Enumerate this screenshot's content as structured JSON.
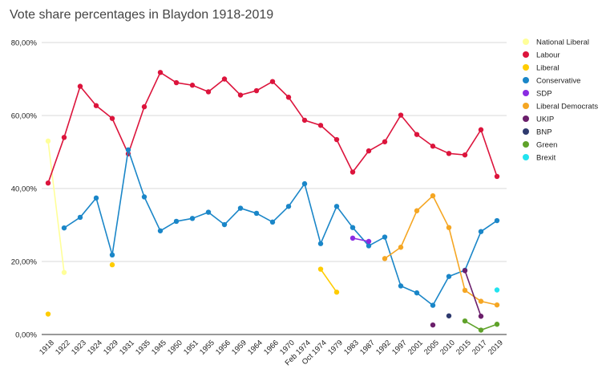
{
  "chart_data": {
    "type": "line",
    "title": "Vote share percentages in Blaydon 1918-2019",
    "xlabel": "",
    "ylabel": "",
    "ylim": [
      0,
      80
    ],
    "yticks": [
      "0,00%",
      "20,00%",
      "40,00%",
      "60,00%",
      "80,00%"
    ],
    "ytick_values": [
      0,
      20,
      40,
      60,
      80
    ],
    "grid": true,
    "legend_position": "right",
    "categories": [
      "1918",
      "1922",
      "1923",
      "1924",
      "1929",
      "1931",
      "1935",
      "1945",
      "1950",
      "1951",
      "1955",
      "1956",
      "1959",
      "1964",
      "1966",
      "1970",
      "Feb 1974",
      "Oct 1974",
      "1979",
      "1983",
      "1987",
      "1992",
      "1997",
      "2001",
      "2005",
      "2010",
      "2015",
      "2017",
      "2019"
    ],
    "series": [
      {
        "name": "National Liberal",
        "color": "#ffff99",
        "values": [
          53,
          17,
          null,
          null,
          null,
          null,
          null,
          null,
          null,
          null,
          null,
          null,
          null,
          null,
          null,
          null,
          null,
          null,
          null,
          null,
          null,
          null,
          null,
          null,
          null,
          null,
          null,
          null,
          null
        ]
      },
      {
        "name": "Labour",
        "color": "#dc143c",
        "values": [
          41.5,
          54,
          68,
          62.7,
          59.2,
          49.5,
          62.4,
          71.8,
          69,
          68.3,
          66.5,
          70,
          65.6,
          66.8,
          69.3,
          65,
          58.7,
          57.3,
          53.4,
          44.5,
          50.3,
          52.8,
          60.1,
          54.8,
          51.6,
          49.6,
          49.2,
          56.1,
          43.3
        ]
      },
      {
        "name": "Liberal",
        "color": "#ffcc00",
        "values": [
          5.6,
          null,
          null,
          null,
          19.1,
          null,
          null,
          null,
          null,
          null,
          null,
          null,
          null,
          null,
          null,
          null,
          null,
          17.9,
          11.6,
          null,
          null,
          null,
          null,
          null,
          null,
          null,
          null,
          null,
          null
        ]
      },
      {
        "name": "Conservative",
        "color": "#1a86c8",
        "values": [
          null,
          29.2,
          32.1,
          37.4,
          21.8,
          50.6,
          37.7,
          28.4,
          31,
          31.8,
          33.5,
          30.1,
          34.6,
          33.2,
          30.8,
          35.1,
          41.3,
          24.9,
          35.1,
          29.3,
          24.3,
          26.7,
          13.3,
          11.4,
          8,
          15.9,
          17.6,
          28.2,
          31.2
        ]
      },
      {
        "name": "SDP",
        "color": "#8a2be2",
        "values": [
          null,
          null,
          null,
          null,
          null,
          null,
          null,
          null,
          null,
          null,
          null,
          null,
          null,
          null,
          null,
          null,
          null,
          null,
          null,
          26.4,
          25.5,
          null,
          null,
          null,
          null,
          null,
          null,
          null,
          null
        ]
      },
      {
        "name": "Liberal Democrats",
        "color": "#f5a623",
        "values": [
          null,
          null,
          null,
          null,
          null,
          null,
          null,
          null,
          null,
          null,
          null,
          null,
          null,
          null,
          null,
          null,
          null,
          null,
          null,
          null,
          null,
          20.8,
          23.9,
          33.9,
          38,
          29.3,
          12.1,
          9.1,
          8.1
        ]
      },
      {
        "name": "UKIP",
        "color": "#6b1f6b",
        "values": [
          null,
          null,
          null,
          null,
          null,
          null,
          null,
          null,
          null,
          null,
          null,
          null,
          null,
          null,
          null,
          null,
          null,
          null,
          null,
          null,
          null,
          null,
          null,
          null,
          2.6,
          null,
          17.5,
          5,
          null
        ]
      },
      {
        "name": "BNP",
        "color": "#2e3a6e",
        "values": [
          null,
          null,
          null,
          null,
          null,
          null,
          null,
          null,
          null,
          null,
          null,
          null,
          null,
          null,
          null,
          null,
          null,
          null,
          null,
          null,
          null,
          null,
          null,
          null,
          null,
          5.1,
          null,
          null,
          null
        ]
      },
      {
        "name": "Green",
        "color": "#5fa22a",
        "values": [
          null,
          null,
          null,
          null,
          null,
          null,
          null,
          null,
          null,
          null,
          null,
          null,
          null,
          null,
          null,
          null,
          null,
          null,
          null,
          null,
          null,
          null,
          null,
          null,
          null,
          null,
          3.7,
          1.2,
          2.8
        ]
      },
      {
        "name": "Brexit",
        "color": "#22e3ef",
        "values": [
          null,
          null,
          null,
          null,
          null,
          null,
          null,
          null,
          null,
          null,
          null,
          null,
          null,
          null,
          null,
          null,
          null,
          null,
          null,
          null,
          null,
          null,
          null,
          null,
          null,
          null,
          null,
          null,
          12.2
        ]
      }
    ]
  }
}
